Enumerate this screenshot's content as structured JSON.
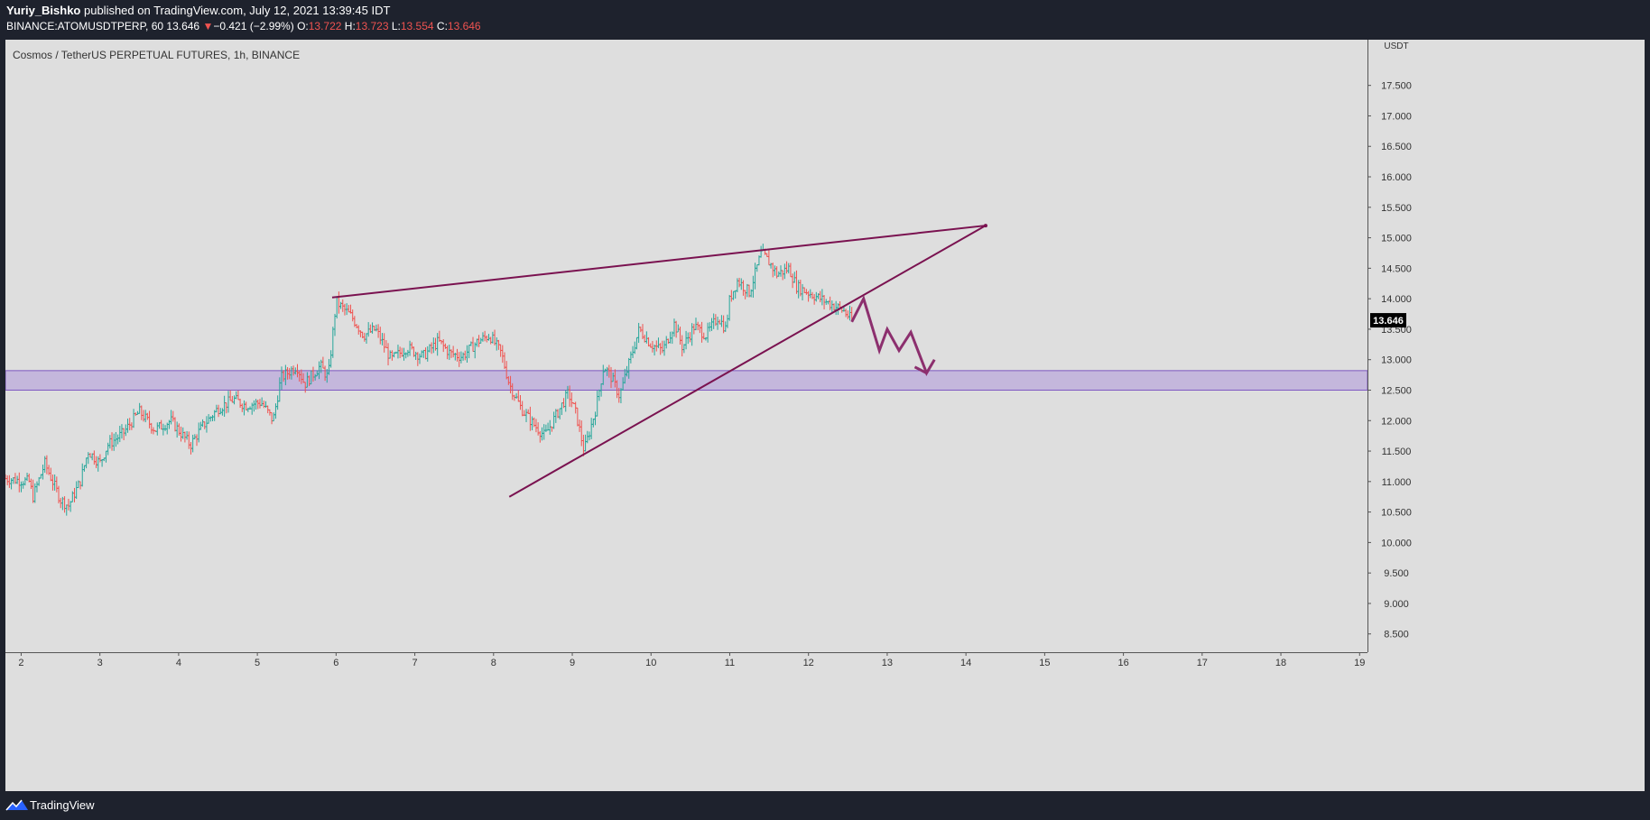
{
  "header": {
    "author": "Yuriy_Bishko",
    "published_text": " published on TradingView.com, July 12, 2021 13:39:45 IDT",
    "symbol": "BINANCE:ATOMUSDTPERP, 60",
    "last_price": "13.646",
    "change_arrow": "▼",
    "change": "−0.421 (−2.99%)",
    "o_label": "O:",
    "o_value": "13.722",
    "h_label": "H:",
    "h_value": "13.723",
    "l_label": "L:",
    "l_value": "13.554",
    "c_label": "C:",
    "c_value": "13.646"
  },
  "footer": {
    "brand": "TradingView",
    "logo_icon": "tradingview-logo-icon"
  },
  "chart_data": {
    "type": "candlestick",
    "title": "Cosmos / TetherUS PERPETUAL FUTURES, 1h, BINANCE",
    "currency": "USDT",
    "ylim": [
      8.2,
      18.25
    ],
    "xlim": [
      1.8,
      19.1
    ],
    "y_ticks": [
      "8.500",
      "9.000",
      "9.500",
      "10.000",
      "10.500",
      "11.000",
      "11.500",
      "12.000",
      "12.500",
      "13.000",
      "13.500",
      "14.000",
      "14.500",
      "15.000",
      "15.500",
      "16.000",
      "16.500",
      "17.000",
      "17.500"
    ],
    "x_ticks": [
      "2",
      "3",
      "4",
      "5",
      "6",
      "7",
      "8",
      "9",
      "10",
      "11",
      "12",
      "13",
      "14",
      "15",
      "16",
      "17",
      "18",
      "19"
    ],
    "last_price_label": "13.646",
    "colors": {
      "up": "#26a69a",
      "down": "#ef5350",
      "wedge": "#7a1250",
      "zone_fill": "#b39ddb",
      "zone_border": "#7e57c2",
      "projection": "#8c2f6e",
      "price_label_bg": "#000000"
    },
    "price_path": [
      [
        1.8,
        11.05
      ],
      [
        2.1,
        11.0
      ],
      [
        2.15,
        10.75
      ],
      [
        2.3,
        11.3
      ],
      [
        2.5,
        10.7
      ],
      [
        2.6,
        10.6
      ],
      [
        2.75,
        11.0
      ],
      [
        2.85,
        11.5
      ],
      [
        3.0,
        11.3
      ],
      [
        3.1,
        11.6
      ],
      [
        3.3,
        11.8
      ],
      [
        3.5,
        12.15
      ],
      [
        3.7,
        11.85
      ],
      [
        3.9,
        12.0
      ],
      [
        4.15,
        11.6
      ],
      [
        4.3,
        11.9
      ],
      [
        4.5,
        12.2
      ],
      [
        4.7,
        12.35
      ],
      [
        4.85,
        12.25
      ],
      [
        5.05,
        12.3
      ],
      [
        5.2,
        12.0
      ],
      [
        5.3,
        12.7
      ],
      [
        5.5,
        12.9
      ],
      [
        5.6,
        12.6
      ],
      [
        5.8,
        12.9
      ],
      [
        5.9,
        12.7
      ],
      [
        6.0,
        13.95
      ],
      [
        6.2,
        13.7
      ],
      [
        6.35,
        13.4
      ],
      [
        6.5,
        13.5
      ],
      [
        6.7,
        13.0
      ],
      [
        6.9,
        13.2
      ],
      [
        7.1,
        13.05
      ],
      [
        7.3,
        13.3
      ],
      [
        7.45,
        13.1
      ],
      [
        7.6,
        13.05
      ],
      [
        7.8,
        13.3
      ],
      [
        7.95,
        13.4
      ],
      [
        8.1,
        13.1
      ],
      [
        8.2,
        12.6
      ],
      [
        8.35,
        12.2
      ],
      [
        8.5,
        11.95
      ],
      [
        8.65,
        11.75
      ],
      [
        8.8,
        12.1
      ],
      [
        8.95,
        12.45
      ],
      [
        9.05,
        12.1
      ],
      [
        9.15,
        11.5
      ],
      [
        9.3,
        12.2
      ],
      [
        9.4,
        12.9
      ],
      [
        9.5,
        12.7
      ],
      [
        9.6,
        12.4
      ],
      [
        9.7,
        12.85
      ],
      [
        9.85,
        13.5
      ],
      [
        10.0,
        13.25
      ],
      [
        10.15,
        13.15
      ],
      [
        10.3,
        13.6
      ],
      [
        10.4,
        13.2
      ],
      [
        10.55,
        13.55
      ],
      [
        10.7,
        13.4
      ],
      [
        10.85,
        13.7
      ],
      [
        10.95,
        13.5
      ],
      [
        11.0,
        14.0
      ],
      [
        11.1,
        14.3
      ],
      [
        11.25,
        14.1
      ],
      [
        11.4,
        14.75
      ],
      [
        11.5,
        14.6
      ],
      [
        11.6,
        14.4
      ],
      [
        11.75,
        14.5
      ],
      [
        11.85,
        14.2
      ],
      [
        12.0,
        14.1
      ],
      [
        12.15,
        14.0
      ],
      [
        12.3,
        13.9
      ],
      [
        12.45,
        13.8
      ],
      [
        12.55,
        13.646
      ]
    ],
    "wedge_upper": [
      [
        5.95,
        14.02
      ],
      [
        14.25,
        15.2
      ]
    ],
    "wedge_lower": [
      [
        8.2,
        10.75
      ],
      [
        14.25,
        15.2
      ]
    ],
    "support_zone": {
      "low": 12.5,
      "high": 12.82,
      "x_start": 1.8,
      "x_end": 19.1
    },
    "projection_path": [
      [
        12.55,
        13.62
      ],
      [
        12.7,
        14.0
      ],
      [
        12.9,
        13.15
      ],
      [
        13.0,
        13.5
      ],
      [
        13.15,
        13.15
      ],
      [
        13.3,
        13.45
      ],
      [
        13.5,
        12.78
      ],
      [
        13.6,
        13.0
      ]
    ],
    "projection_arrowhead": [
      [
        13.35,
        12.88
      ],
      [
        13.5,
        12.78
      ]
    ]
  }
}
